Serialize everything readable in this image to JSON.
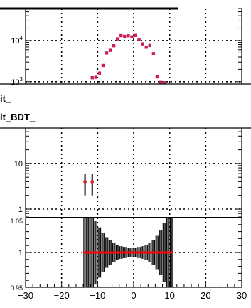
{
  "strips": [
    {
      "label": "it_"
    },
    {
      "label": "it_BDT_"
    }
  ],
  "colors": {
    "marker_top": "#cc1f55",
    "marker_mid": "#d62020",
    "ratio_line": "#ff0000",
    "band_fill": "#b8b8b8",
    "grid": "#000000",
    "frame": "#000000"
  },
  "chart_data": [
    {
      "type": "scatter",
      "title": "",
      "xlabel": "",
      "ylabel": "",
      "log_y": true,
      "grid": true,
      "xlim": [
        -30,
        30
      ],
      "ylim": [
        880,
        60000
      ],
      "ytick_labels": [
        "10^3",
        "10^4"
      ],
      "marker": "square",
      "series": [
        {
          "x": [
            -11.5,
            -10.5,
            -9.5,
            -8.5,
            -7.5,
            -6.5,
            -5.5,
            -4.5,
            -3.5,
            -2.5,
            -1.5,
            -0.5,
            0.5,
            1.5,
            2.5,
            3.5,
            4.5,
            5.5,
            6.5,
            7.5,
            8.5
          ],
          "y": [
            1250,
            1280,
            1620,
            2480,
            5000,
            5800,
            7500,
            11000,
            13200,
            12700,
            13100,
            12300,
            13300,
            10600,
            8300,
            6900,
            7600,
            4800,
            1310,
            960,
            940
          ]
        }
      ]
    },
    {
      "type": "scatter",
      "title": "",
      "xlabel": "",
      "ylabel": "",
      "log_y": true,
      "grid": true,
      "xlim": [
        -30,
        30
      ],
      "ylim": [
        0.65,
        60
      ],
      "ytick_labels": [
        "1",
        "10"
      ],
      "series": [
        {
          "x": [
            -13.5,
            -11.5
          ],
          "y": [
            4.0,
            4.0
          ],
          "yerr_low": [
            2.0,
            2.0
          ],
          "yerr_high": [
            2.0,
            2.0
          ]
        }
      ]
    },
    {
      "type": "line",
      "title": "",
      "xlabel": "",
      "ylabel": "",
      "grid": true,
      "xlim": [
        -30,
        30
      ],
      "ylim": [
        0.95,
        1.05
      ],
      "ytick_labels": [
        "0.95",
        "1",
        "1.05"
      ],
      "xtick_labels": [
        "−30",
        "−20",
        "−10",
        "0",
        "10",
        "20",
        "30"
      ],
      "xticks": [
        -30,
        -20,
        -10,
        0,
        10,
        20,
        30
      ],
      "ratio_line": {
        "x_start": -14,
        "x_end": 11,
        "value": 1.0
      },
      "error_band": {
        "x": [
          -13.5,
          -12.5,
          -11.5,
          -10.5,
          -9.5,
          -8.5,
          -7.5,
          -6.5,
          -5.5,
          -4.5,
          -3.5,
          -2.5,
          -1.5,
          -0.5,
          0.5,
          1.5,
          2.5,
          3.5,
          4.5,
          5.5,
          6.5,
          7.5,
          8.5,
          9.5,
          10.5
        ],
        "half_width": [
          0.05,
          0.05,
          0.05,
          0.045,
          0.036,
          0.028,
          0.022,
          0.018,
          0.014,
          0.011,
          0.009,
          0.008,
          0.007,
          0.006,
          0.007,
          0.008,
          0.009,
          0.011,
          0.014,
          0.018,
          0.024,
          0.032,
          0.042,
          0.05,
          0.05
        ]
      }
    }
  ]
}
